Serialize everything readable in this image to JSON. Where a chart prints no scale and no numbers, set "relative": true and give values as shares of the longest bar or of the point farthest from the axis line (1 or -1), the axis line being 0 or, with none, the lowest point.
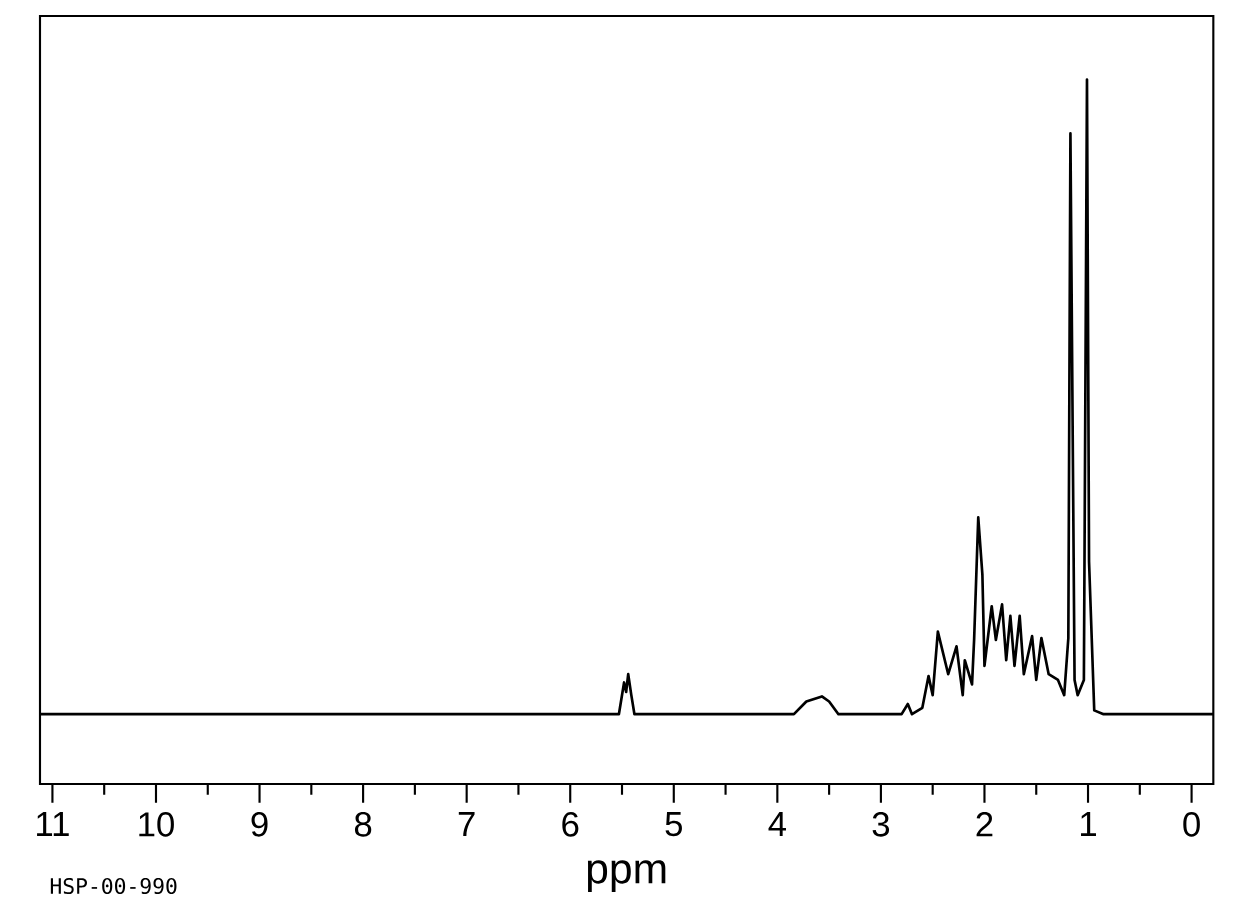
{
  "chart_data": {
    "type": "line",
    "relative": true,
    "xlabel": "ppm",
    "annotations": [
      "HSP-00-990"
    ],
    "xlim": [
      11.12,
      -0.21
    ],
    "xticks": [
      11,
      10,
      9,
      8,
      7,
      6,
      5,
      4,
      3,
      2,
      1,
      0
    ],
    "tick_labels": "x",
    "grid": false,
    "marker": "none",
    "line_style": "solid",
    "series": [
      {
        "color": "#000000",
        "x": [
          11.12,
          5.53,
          5.48,
          5.46,
          5.44,
          5.41,
          5.38,
          3.84,
          3.72,
          3.57,
          3.5,
          3.41,
          2.8,
          2.74,
          2.7,
          2.6,
          2.54,
          2.5,
          2.45,
          2.35,
          2.27,
          2.21,
          2.19,
          2.12,
          2.1,
          2.06,
          2.02,
          2.0,
          1.93,
          1.89,
          1.83,
          1.79,
          1.75,
          1.71,
          1.66,
          1.62,
          1.54,
          1.5,
          1.45,
          1.38,
          1.29,
          1.23,
          1.19,
          1.17,
          1.13,
          1.1,
          1.04,
          1.01,
          0.99,
          0.94,
          0.85,
          -0.21
        ],
        "values": [
          0,
          0,
          0.05,
          0.035,
          0.063,
          0.03,
          0,
          0,
          0.02,
          0.028,
          0.02,
          0,
          0,
          0.016,
          0,
          0.01,
          0.06,
          0.03,
          0.13,
          0.063,
          0.107,
          0.03,
          0.085,
          0.047,
          0.117,
          0.31,
          0.22,
          0.076,
          0.17,
          0.117,
          0.173,
          0.085,
          0.155,
          0.076,
          0.155,
          0.063,
          0.123,
          0.054,
          0.12,
          0.063,
          0.054,
          0.03,
          0.12,
          0.915,
          0.054,
          0.03,
          0.054,
          1.0,
          0.24,
          0.006,
          0,
          0
        ]
      }
    ]
  }
}
